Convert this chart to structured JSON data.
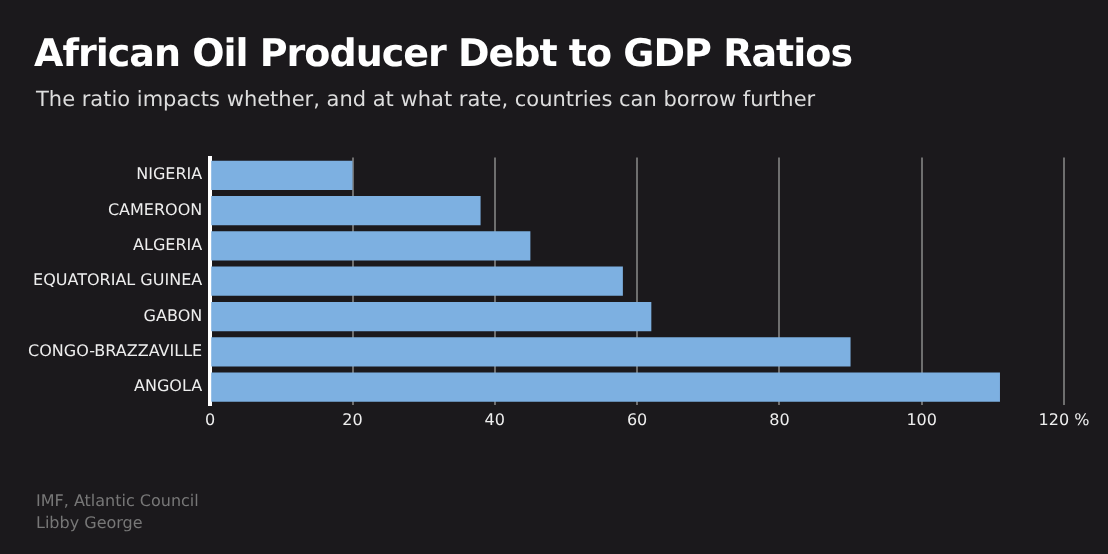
{
  "chart_data": {
    "type": "bar",
    "orientation": "horizontal",
    "title": "African Oil Producer Debt to GDP Ratios",
    "subtitle": "The ratio impacts whether, and at what rate, countries can borrow further",
    "categories": [
      "NIGERIA",
      "CAMEROON",
      "ALGERIA",
      "EQUATORIAL GUINEA",
      "GABON",
      "CONGO-BRAZZAVILLE",
      "ANGOLA"
    ],
    "values": [
      20,
      38,
      45,
      58,
      62,
      90,
      111
    ],
    "color": "#7db0e1",
    "xlim": [
      0,
      120
    ],
    "xticks": [
      0,
      20,
      40,
      60,
      80,
      100,
      {
        "value": 120,
        "label": "120 %"
      }
    ],
    "grid": "x",
    "legend": false,
    "annotations": [
      "IMF, Atlantic Council",
      "Libby George"
    ]
  }
}
